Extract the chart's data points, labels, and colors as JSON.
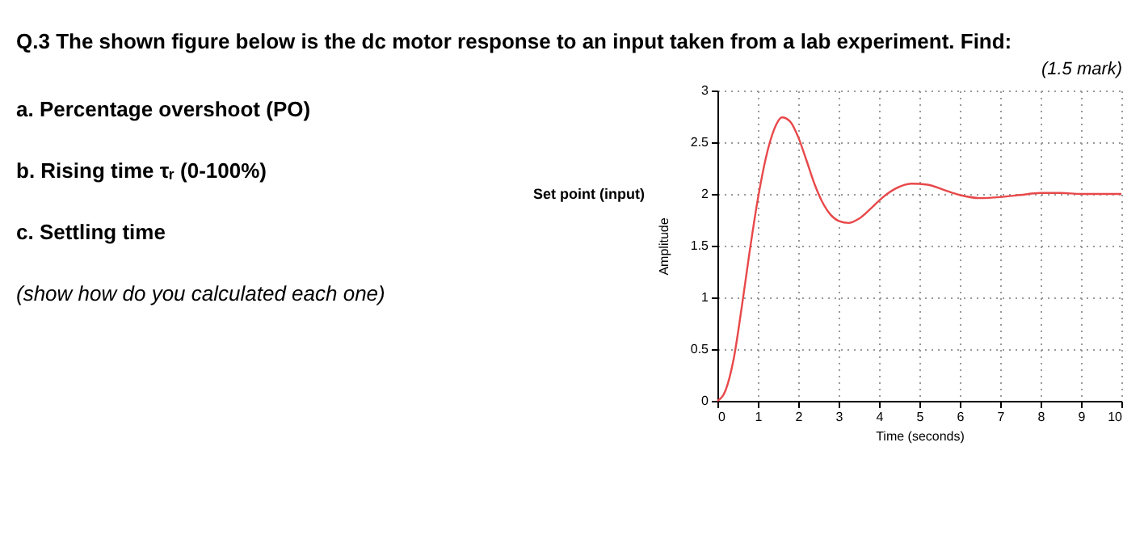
{
  "chart_data": {
    "type": "line",
    "title": "Q.3 The shown figure below is the dc motor response to an input taken from a lab experiment. Find:",
    "annotations": [
      "a. Percentage overshoot (PO)",
      "b. Rising time τᵣ (0-100%)",
      "c. Settling time",
      "(show how do you calculated each one)",
      "(1.5 mark)",
      "Set point (input)"
    ],
    "xlabel": "Time (seconds)",
    "ylabel": "Amplitude",
    "xlim": [
      0,
      10
    ],
    "xticks": [
      0,
      1,
      2,
      3,
      4,
      5,
      6,
      7,
      8,
      9,
      10
    ],
    "ylim": [
      0,
      3
    ],
    "yticks": [
      0,
      0.5,
      1,
      1.5,
      2,
      2.5,
      3
    ],
    "grid": true,
    "x": [
      0,
      0.2,
      0.4,
      0.6,
      0.8,
      1.0,
      1.2,
      1.4,
      1.6,
      1.8,
      2.0,
      2.2,
      2.4,
      2.6,
      2.8,
      3.0,
      3.25,
      3.5,
      3.8,
      4.1,
      4.4,
      4.8,
      5.2,
      5.6,
      6.0,
      6.5,
      7.0,
      7.5,
      8.0,
      8.5,
      9.0,
      10
    ],
    "series": [
      {
        "color": "#e8484a",
        "values": [
          0,
          0.1,
          0.4,
          0.9,
          1.45,
          1.95,
          2.35,
          2.62,
          2.74,
          2.7,
          2.55,
          2.33,
          2.1,
          1.92,
          1.8,
          1.74,
          1.72,
          1.76,
          1.86,
          1.97,
          2.05,
          2.1,
          2.09,
          2.04,
          1.99,
          1.96,
          1.97,
          1.99,
          2.01,
          2.01,
          2.0,
          2.0
        ]
      }
    ]
  }
}
